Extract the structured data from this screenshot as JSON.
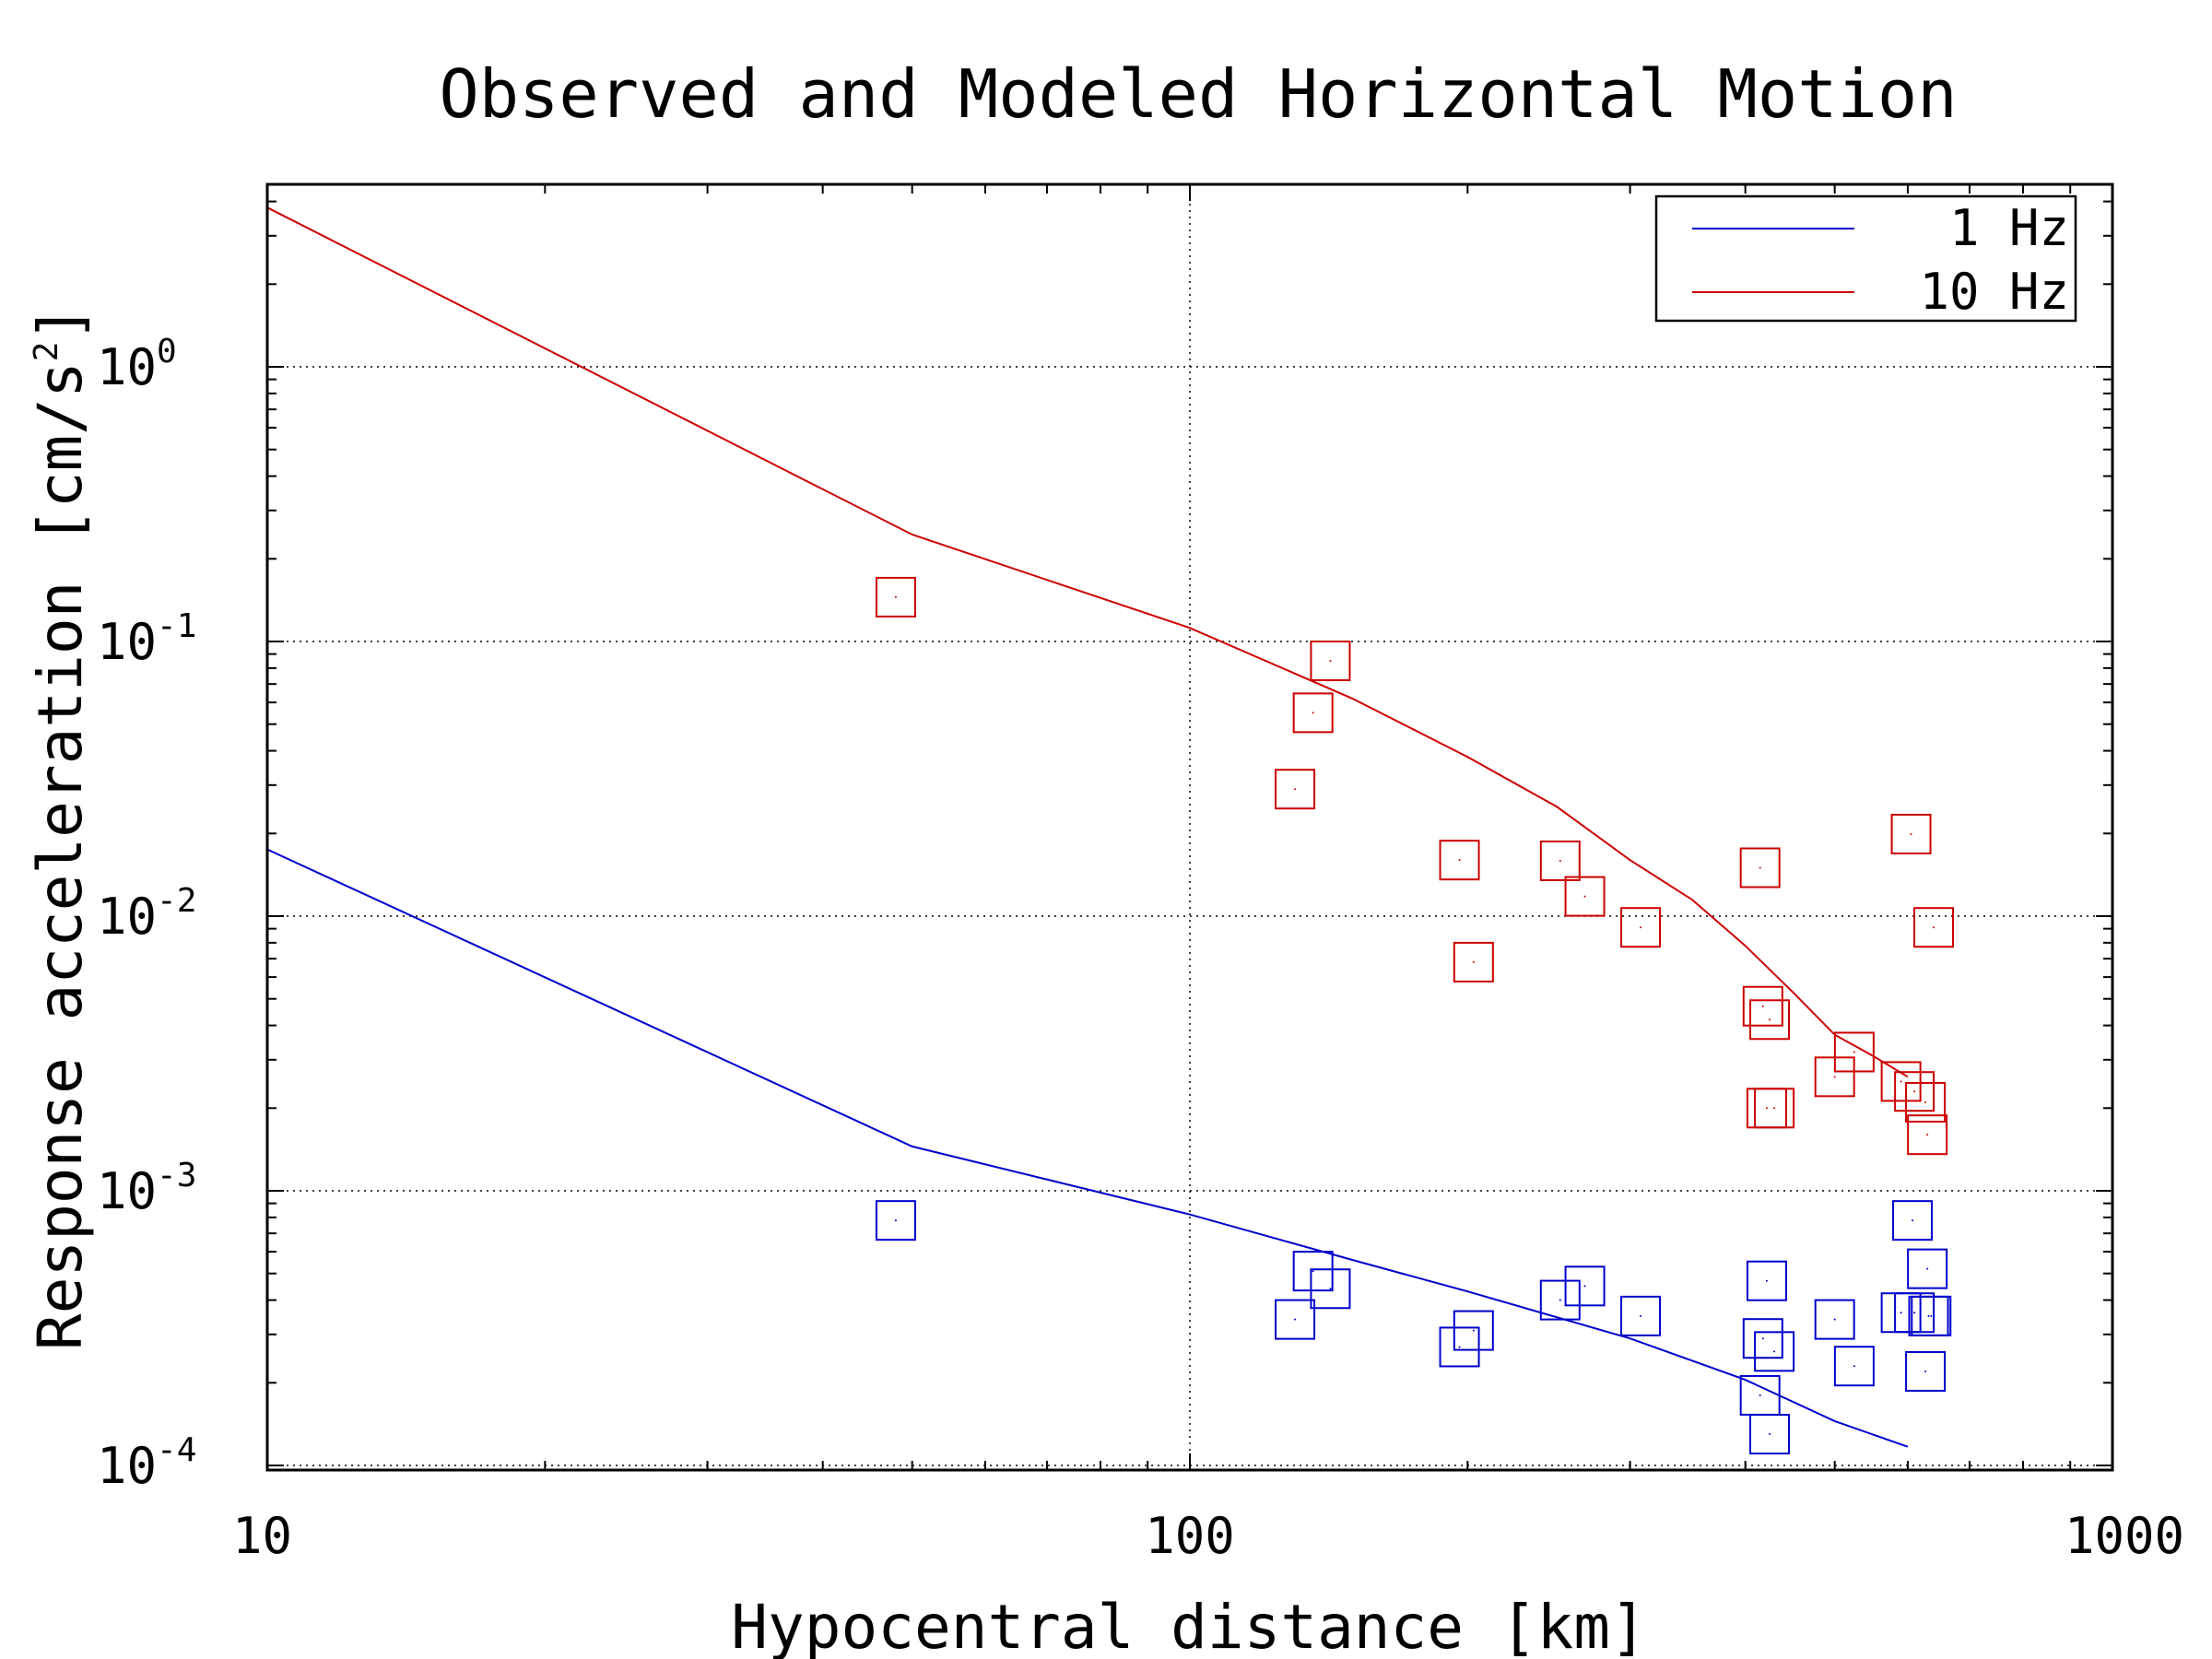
{
  "chart_data": {
    "type": "scatter",
    "title": "Observed and Modeled Horizontal Motion",
    "xlabel": "Hypocentral distance [km]",
    "ylabel_text": "Response acceleration [cm/s",
    "ylabel_exponent": "2",
    "ylabel_close": "]",
    "xscale": "log",
    "yscale": "log",
    "xlim": [
      10,
      1000
    ],
    "ylim": [
      0.0001,
      4
    ],
    "grid": true,
    "legend_position": "top-right",
    "x_ticks": [
      {
        "value": 10,
        "label": "10"
      },
      {
        "value": 100,
        "label": "100"
      },
      {
        "value": 1000,
        "label": "1000"
      }
    ],
    "y_ticks": [
      {
        "value": 0.0001,
        "base": "10",
        "exp": "-4"
      },
      {
        "value": 0.001,
        "base": "10",
        "exp": "-3"
      },
      {
        "value": 0.01,
        "base": "10",
        "exp": "-2"
      },
      {
        "value": 0.1,
        "base": "10",
        "exp": "-1"
      },
      {
        "value": 1,
        "base": "10",
        "exp": "0"
      }
    ],
    "series": [
      {
        "name": "1 Hz",
        "kind": "model-line",
        "color": "#0000cc",
        "x": [
          10,
          50,
          100,
          150,
          200,
          300,
          400,
          500,
          600
        ],
        "y": [
          0.0175,
          0.00145,
          0.00082,
          0.00056,
          0.00043,
          0.00029,
          0.000205,
          0.000145,
          0.000117
        ]
      },
      {
        "name": "10 Hz",
        "kind": "model-line",
        "color": "#cc0000",
        "x": [
          10,
          50,
          100,
          150,
          200,
          250,
          300,
          350,
          400,
          450,
          500,
          550,
          600
        ],
        "y": [
          3.8,
          0.245,
          0.112,
          0.062,
          0.038,
          0.025,
          0.016,
          0.0115,
          0.0078,
          0.0053,
          0.0037,
          0.0031,
          0.0026
        ]
      },
      {
        "kind": "observed",
        "color": "#0000cc",
        "x": [
          48,
          130,
          136,
          142,
          196,
          203,
          252,
          268,
          308,
          415,
          418,
          422,
          425,
          430,
          500,
          525,
          590,
          607,
          610,
          627,
          630,
          632,
          636
        ],
        "y": [
          0.00078,
          0.00034,
          0.00051,
          0.00044,
          0.00027,
          0.00031,
          0.0004,
          0.00045,
          0.00035,
          0.00018,
          0.00029,
          0.00047,
          0.00013,
          0.00026,
          0.00034,
          0.00023,
          0.00036,
          0.00078,
          0.00036,
          0.00022,
          0.00052,
          0.00035,
          0.00035
        ]
      },
      {
        "kind": "observed",
        "color": "#cc0000",
        "x": [
          48,
          130,
          136,
          142,
          196,
          203,
          252,
          268,
          308,
          415,
          418,
          422,
          425,
          430,
          500,
          525,
          590,
          605,
          610,
          627,
          630,
          640
        ],
        "y": [
          0.145,
          0.029,
          0.055,
          0.085,
          0.016,
          0.0068,
          0.0159,
          0.0118,
          0.0091,
          0.015,
          0.0047,
          0.002,
          0.0042,
          0.002,
          0.0026,
          0.0032,
          0.0025,
          0.0199,
          0.0023,
          0.0021,
          0.0016,
          0.0091
        ]
      }
    ]
  }
}
